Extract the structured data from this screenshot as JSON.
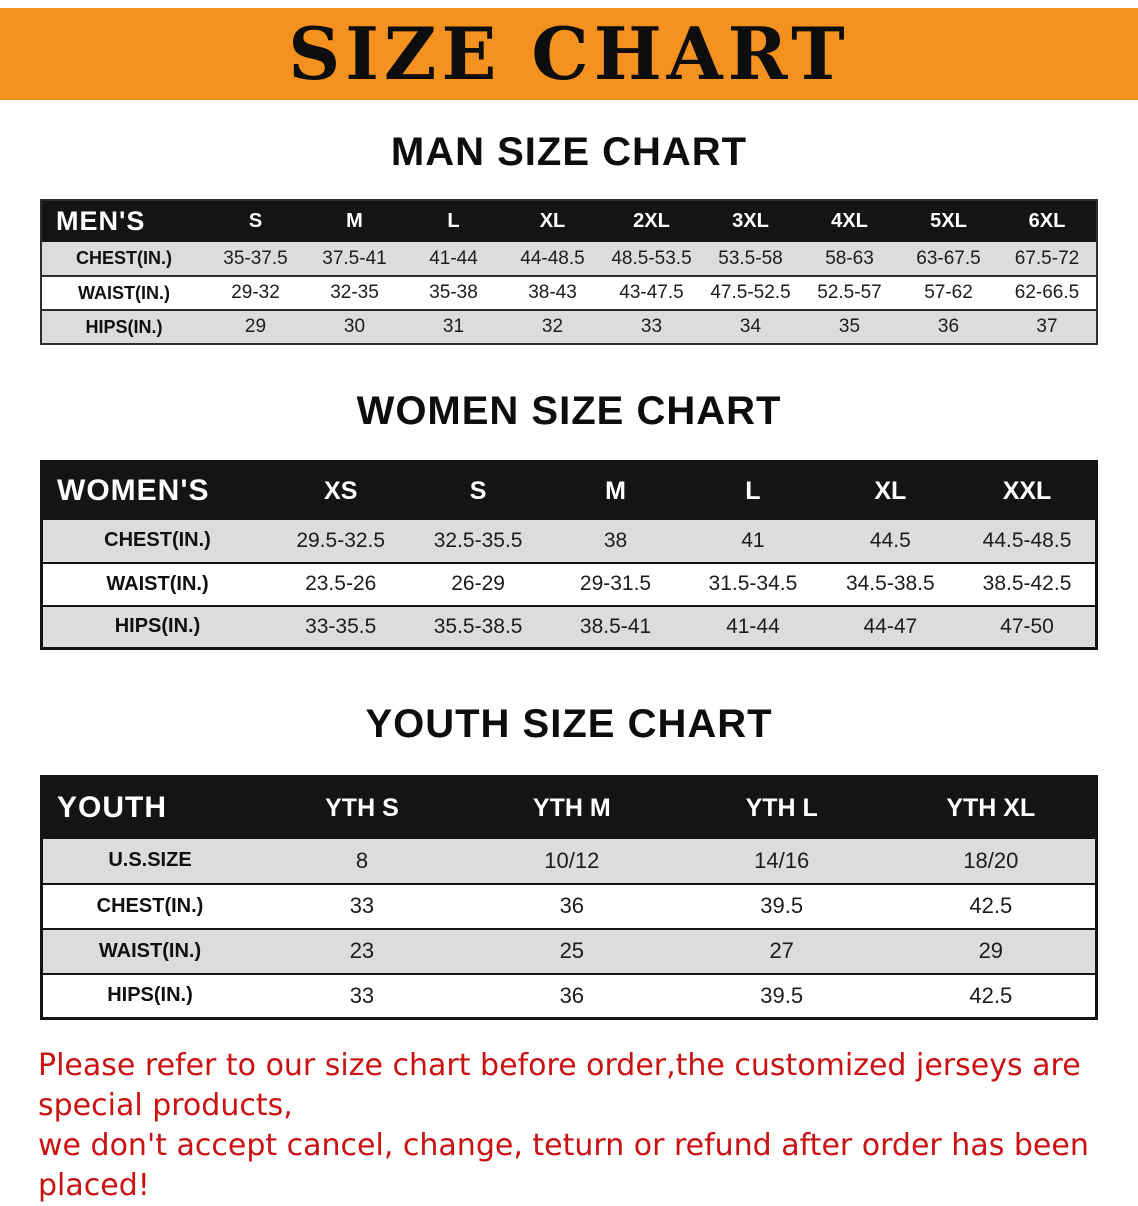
{
  "banner": {
    "title": "SIZE CHART"
  },
  "chart_data": [
    {
      "type": "table",
      "title": "MAN SIZE CHART",
      "corner_label": "MEN'S",
      "columns": [
        "S",
        "M",
        "L",
        "XL",
        "2XL",
        "3XL",
        "4XL",
        "5XL",
        "6XL"
      ],
      "rows": [
        {
          "label": "CHEST(IN.)",
          "values": [
            "35-37.5",
            "37.5-41",
            "41-44",
            "44-48.5",
            "48.5-53.5",
            "53.5-58",
            "58-63",
            "63-67.5",
            "67.5-72"
          ]
        },
        {
          "label": "WAIST(IN.)",
          "values": [
            "29-32",
            "32-35",
            "35-38",
            "38-43",
            "43-47.5",
            "47.5-52.5",
            "52.5-57",
            "57-62",
            "62-66.5"
          ]
        },
        {
          "label": "HIPS(IN.)",
          "values": [
            "29",
            "30",
            "31",
            "32",
            "33",
            "34",
            "35",
            "36",
            "37"
          ]
        }
      ]
    },
    {
      "type": "table",
      "title": "WOMEN SIZE CHART",
      "corner_label": "WOMEN'S",
      "columns": [
        "XS",
        "S",
        "M",
        "L",
        "XL",
        "XXL"
      ],
      "rows": [
        {
          "label": "CHEST(IN.)",
          "values": [
            "29.5-32.5",
            "32.5-35.5",
            "38",
            "41",
            "44.5",
            "44.5-48.5"
          ]
        },
        {
          "label": "WAIST(IN.)",
          "values": [
            "23.5-26",
            "26-29",
            "29-31.5",
            "31.5-34.5",
            "34.5-38.5",
            "38.5-42.5"
          ]
        },
        {
          "label": "HIPS(IN.)",
          "values": [
            "33-35.5",
            "35.5-38.5",
            "38.5-41",
            "41-44",
            "44-47",
            "47-50"
          ]
        }
      ]
    },
    {
      "type": "table",
      "title": "YOUTH SIZE CHART",
      "corner_label": "YOUTH",
      "columns": [
        "YTH S",
        "YTH M",
        "YTH L",
        "YTH XL"
      ],
      "rows": [
        {
          "label": "U.S.SIZE",
          "values": [
            "8",
            "10/12",
            "14/16",
            "18/20"
          ]
        },
        {
          "label": "CHEST(IN.)",
          "values": [
            "33",
            "36",
            "39.5",
            "42.5"
          ]
        },
        {
          "label": "WAIST(IN.)",
          "values": [
            "23",
            "25",
            "27",
            "29"
          ]
        },
        {
          "label": "HIPS(IN.)",
          "values": [
            "33",
            "36",
            "39.5",
            "42.5"
          ]
        }
      ]
    }
  ],
  "footer": {
    "line1": "Please refer to our size chart before order,the customized jerseys are special products,",
    "line2": "we don't accept cancel, change, teturn or refund after order has been placed!"
  },
  "colors": {
    "banner_orange": "#F5911E",
    "header_black": "#141414",
    "row_gray": "#DCDCDC",
    "footer_red": "#CB1111"
  }
}
